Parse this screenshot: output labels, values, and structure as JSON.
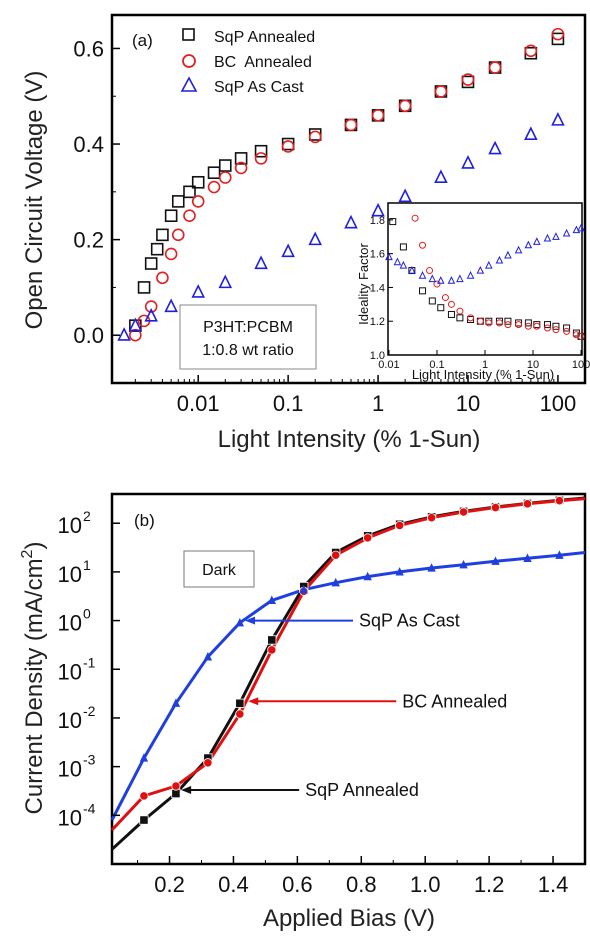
{
  "chart_data": [
    {
      "panel": "(a)",
      "type": "scatter",
      "xlabel": "Light Intensity (% 1-Sun)",
      "ylabel": "Open Circuit Voltage (V)",
      "xscale": "log",
      "xlim": [
        0.0011,
        200
      ],
      "ylim": [
        -0.1,
        0.67
      ],
      "xticks": [
        0.01,
        0.1,
        1,
        10,
        100
      ],
      "xtick_labels": [
        "0.01",
        "0.1",
        "1",
        "10",
        "100"
      ],
      "yticks": [
        0.0,
        0.2,
        0.4,
        0.6
      ],
      "ytick_labels": [
        "0.0",
        "0.2",
        "0.4",
        "0.6"
      ],
      "legend_position": "top-left",
      "annotation": [
        "P3HT:PCBM",
        "1:0.8 wt ratio"
      ],
      "series": [
        {
          "name": "SqP Annealed",
          "marker": "square",
          "color": "#111111",
          "x": [
            0.002,
            0.0025,
            0.003,
            0.0035,
            0.004,
            0.005,
            0.006,
            0.008,
            0.01,
            0.015,
            0.02,
            0.03,
            0.05,
            0.1,
            0.2,
            0.5,
            1,
            2,
            5,
            10,
            20,
            50,
            100
          ],
          "y": [
            0.02,
            0.1,
            0.15,
            0.18,
            0.21,
            0.25,
            0.28,
            0.3,
            0.32,
            0.34,
            0.355,
            0.37,
            0.385,
            0.4,
            0.42,
            0.44,
            0.46,
            0.48,
            0.51,
            0.53,
            0.56,
            0.59,
            0.62
          ]
        },
        {
          "name": "BC  Annealed",
          "marker": "circle",
          "color": "#e02020",
          "x": [
            0.002,
            0.0025,
            0.003,
            0.004,
            0.005,
            0.006,
            0.008,
            0.01,
            0.015,
            0.02,
            0.03,
            0.05,
            0.1,
            0.2,
            0.5,
            1,
            2,
            5,
            10,
            20,
            50,
            100
          ],
          "y": [
            0.0,
            0.03,
            0.06,
            0.12,
            0.17,
            0.21,
            0.25,
            0.28,
            0.31,
            0.33,
            0.35,
            0.37,
            0.395,
            0.415,
            0.44,
            0.46,
            0.48,
            0.51,
            0.535,
            0.56,
            0.595,
            0.63
          ]
        },
        {
          "name": "SqP As Cast",
          "marker": "triangle",
          "color": "#1f1fe0",
          "x": [
            0.0015,
            0.002,
            0.003,
            0.005,
            0.01,
            0.02,
            0.05,
            0.1,
            0.2,
            0.5,
            1,
            2,
            5,
            10,
            20,
            50,
            100
          ],
          "y": [
            0.0,
            0.02,
            0.04,
            0.06,
            0.09,
            0.11,
            0.15,
            0.175,
            0.2,
            0.235,
            0.26,
            0.29,
            0.33,
            0.36,
            0.39,
            0.42,
            0.45
          ]
        }
      ],
      "inset": {
        "type": "scatter",
        "xlabel": "Light Intensity (% 1-Sun)",
        "ylabel": "Ideality Factor",
        "xscale": "log",
        "xlim": [
          0.01,
          100
        ],
        "ylim": [
          1.0,
          1.9
        ],
        "xticks": [
          0.01,
          0.1,
          1,
          10,
          100
        ],
        "xtick_labels": [
          "0.01",
          "0.1",
          "1",
          "10",
          "100"
        ],
        "yticks": [
          1.0,
          1.2,
          1.4,
          1.6,
          1.8
        ],
        "ytick_labels": [
          "1.0",
          "1.2",
          "1.4",
          "1.6",
          "1.8"
        ],
        "series": [
          {
            "name": "SqP Annealed",
            "marker": "square",
            "color": "#111111",
            "x": [
              0.012,
              0.02,
              0.03,
              0.05,
              0.08,
              0.12,
              0.2,
              0.3,
              0.5,
              0.8,
              1.2,
              2,
              3,
              5,
              8,
              12,
              20,
              30,
              50,
              80,
              100
            ],
            "y": [
              1.79,
              1.64,
              1.5,
              1.38,
              1.32,
              1.28,
              1.24,
              1.22,
              1.21,
              1.2,
              1.2,
              1.2,
              1.2,
              1.19,
              1.19,
              1.18,
              1.18,
              1.17,
              1.16,
              1.13,
              1.11
            ]
          },
          {
            "name": "BC  Annealed",
            "marker": "circle",
            "color": "#e02020",
            "x": [
              0.035,
              0.05,
              0.07,
              0.1,
              0.15,
              0.2,
              0.3,
              0.5,
              0.8,
              1.2,
              2,
              3,
              5,
              8,
              12,
              20,
              30,
              50,
              80,
              100
            ],
            "y": [
              1.81,
              1.65,
              1.5,
              1.42,
              1.34,
              1.3,
              1.26,
              1.22,
              1.2,
              1.19,
              1.19,
              1.18,
              1.18,
              1.17,
              1.17,
              1.16,
              1.15,
              1.14,
              1.12,
              1.11
            ]
          },
          {
            "name": "SqP As Cast",
            "marker": "triangle",
            "color": "#1f1fe0",
            "x": [
              0.01,
              0.015,
              0.02,
              0.03,
              0.05,
              0.08,
              0.12,
              0.2,
              0.3,
              0.5,
              0.8,
              1.2,
              2,
              3,
              5,
              8,
              12,
              20,
              30,
              50,
              80,
              100
            ],
            "y": [
              1.58,
              1.55,
              1.53,
              1.5,
              1.47,
              1.45,
              1.44,
              1.44,
              1.45,
              1.47,
              1.5,
              1.53,
              1.56,
              1.59,
              1.62,
              1.65,
              1.67,
              1.69,
              1.7,
              1.72,
              1.74,
              1.75
            ]
          }
        ]
      }
    },
    {
      "panel": "(b)",
      "type": "line",
      "xlabel": "Applied Bias (V)",
      "ylabel": "Current Density (mA/cm",
      "ylabel_sup": "2",
      "ylabel_close": ")",
      "yscale": "log",
      "xlim": [
        0.02,
        1.5
      ],
      "ylim_exp": [
        -5,
        2.6
      ],
      "xticks": [
        0.2,
        0.4,
        0.6,
        0.8,
        1.0,
        1.2,
        1.4
      ],
      "xtick_labels": [
        "0.2",
        "0.4",
        "0.6",
        "0.8",
        "1.0",
        "1.2",
        "1.4"
      ],
      "ytick_exps": [
        -4,
        -3,
        -2,
        -1,
        0,
        1,
        2
      ],
      "ytick_base": "10",
      "ytick_sups": [
        "-4",
        "-3",
        "-2",
        "-1",
        "0",
        "1",
        "2"
      ],
      "annotation": "Dark",
      "series": [
        {
          "name": "SqP As Cast",
          "marker": "triangle",
          "color": "#1f3fe0",
          "x": [
            0.02,
            0.12,
            0.22,
            0.32,
            0.42,
            0.52,
            0.62,
            0.72,
            0.82,
            0.92,
            1.02,
            1.12,
            1.22,
            1.32,
            1.42,
            1.5
          ],
          "y": [
            8e-05,
            0.0015,
            0.02,
            0.18,
            0.9,
            2.6,
            4.3,
            6.0,
            8.0,
            10.0,
            12.0,
            14.0,
            16.5,
            19.0,
            22.0,
            25.0
          ]
        },
        {
          "name": "BC Annealed",
          "marker": "circle",
          "color": "#e01010",
          "x": [
            0.02,
            0.12,
            0.22,
            0.32,
            0.42,
            0.52,
            0.62,
            0.72,
            0.82,
            0.92,
            1.02,
            1.12,
            1.22,
            1.32,
            1.42,
            1.5
          ],
          "y": [
            5e-05,
            0.00025,
            0.0004,
            0.0012,
            0.012,
            0.25,
            4.0,
            22.0,
            50.0,
            90.0,
            130.0,
            170.0,
            210.0,
            250.0,
            290.0,
            320.0
          ]
        },
        {
          "name": "SqP Annealed",
          "marker": "square",
          "color": "#111111",
          "x": [
            0.02,
            0.12,
            0.22,
            0.32,
            0.42,
            0.52,
            0.62,
            0.72,
            0.82,
            0.92,
            1.02,
            1.12,
            1.22,
            1.32,
            1.42,
            1.5
          ],
          "y": [
            2e-05,
            8e-05,
            0.00028,
            0.0015,
            0.02,
            0.4,
            5.0,
            25.0,
            55.0,
            95.0,
            135.0,
            175.0,
            215.0,
            255.0,
            295.0,
            330.0
          ]
        }
      ],
      "callouts": [
        {
          "label": "SqP As Cast",
          "series": "SqP As Cast",
          "at_x": 0.43
        },
        {
          "label": "BC Annealed",
          "series": "BC Annealed",
          "at_x": 0.44
        },
        {
          "label": "SqP Annealed",
          "series": "SqP Annealed",
          "at_x": 0.23
        }
      ]
    }
  ]
}
